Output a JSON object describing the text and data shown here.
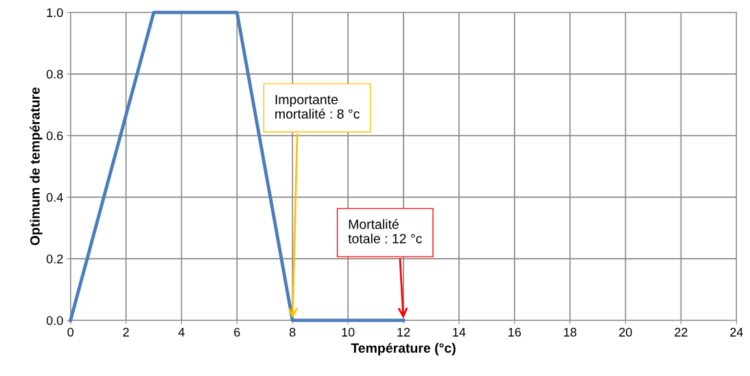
{
  "chart_data": {
    "type": "line",
    "xlabel": "Température (°c)",
    "ylabel": "Optimum de température",
    "x": [
      0,
      3,
      6,
      8,
      12
    ],
    "series": [
      {
        "color": "#4a7ebb",
        "values": [
          0,
          1,
          1,
          0,
          0
        ]
      }
    ],
    "xlim": [
      0,
      24
    ],
    "xticks": [
      0,
      2,
      4,
      6,
      8,
      10,
      12,
      14,
      16,
      18,
      20,
      22,
      24
    ],
    "ylim": [
      0,
      1
    ],
    "yticks": [
      {
        "value": 0,
        "label": "0.0"
      },
      {
        "value": 0.2,
        "label": "0.2"
      },
      {
        "value": 0.4,
        "label": "0.4"
      },
      {
        "value": 0.6,
        "label": "0.6"
      },
      {
        "value": 0.8,
        "label": "0.8"
      },
      {
        "value": 1,
        "label": "1.0"
      }
    ],
    "grid": true,
    "marker": "none",
    "line_style": "solid",
    "annotations": [
      {
        "text": "Importante\nmortalité : 8 °c",
        "x": 8,
        "y": 0
      },
      {
        "text": "Mortalité\ntotale : 12 °c",
        "x": 12,
        "y": 0
      }
    ]
  }
}
